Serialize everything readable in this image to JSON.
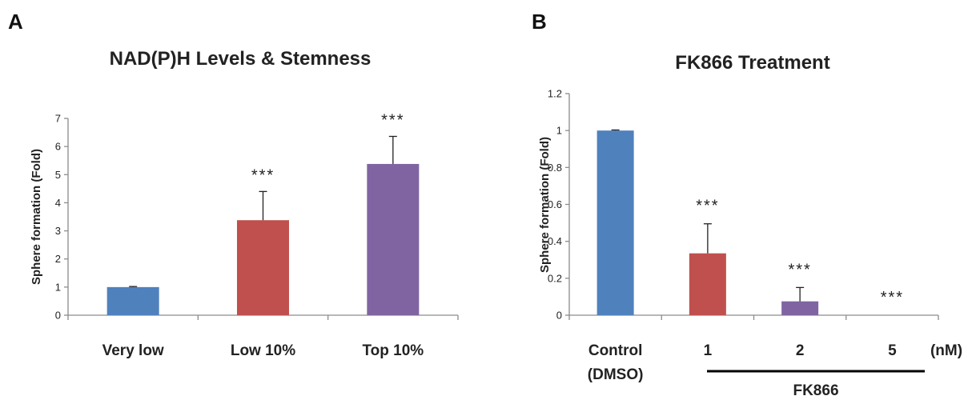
{
  "panels": [
    {
      "letter": "A"
    },
    {
      "letter": "B",
      "units": "(nM)",
      "group_label": "FK866"
    }
  ],
  "chart_data": [
    {
      "type": "bar",
      "title": "NAD(P)H Levels & Stemness",
      "xlabel": "",
      "ylabel": "Sphere formation (Fold)",
      "ylim": [
        0,
        7
      ],
      "yticks": [
        "0",
        "1",
        "2",
        "3",
        "4",
        "5",
        "6",
        "7"
      ],
      "categories": [
        "Very low",
        "Low 10%",
        "Top 10%"
      ],
      "values": [
        1.0,
        3.38,
        5.38
      ],
      "errors": [
        0.02,
        1.02,
        0.98
      ],
      "significance": [
        "",
        "***",
        "***"
      ],
      "colors": [
        "#4f81bd",
        "#c0504d",
        "#8064a2"
      ],
      "grid": false
    },
    {
      "type": "bar",
      "title": "FK866 Treatment",
      "xlabel": "",
      "ylabel": "Sphere formation (Fold)",
      "ylim": [
        0,
        1.2
      ],
      "yticks": [
        "0",
        "0.2",
        "0.4",
        "0.6",
        "0.8",
        "1",
        "1.2"
      ],
      "categories": [
        [
          "Control",
          "(DMSO)"
        ],
        [
          "1"
        ],
        [
          "2"
        ],
        [
          "5"
        ]
      ],
      "values": [
        1.0,
        0.335,
        0.075,
        0.0
      ],
      "errors": [
        0.003,
        0.16,
        0.075,
        0.0
      ],
      "significance": [
        "",
        "***",
        "***",
        "***"
      ],
      "colors": [
        "#4f81bd",
        "#c0504d",
        "#8064a2",
        "#9bbb59"
      ],
      "grid": false
    }
  ]
}
